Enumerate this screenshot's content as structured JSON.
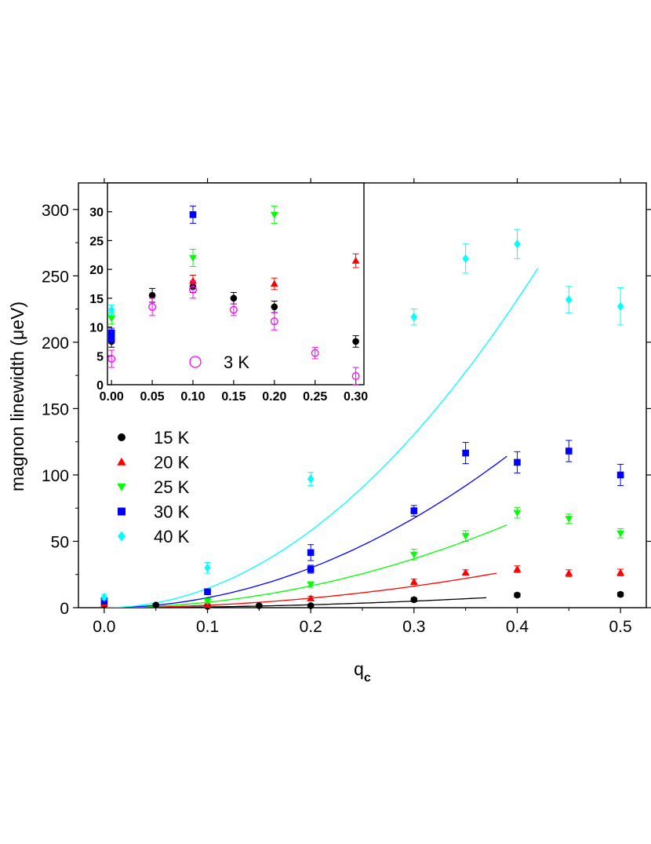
{
  "chart_data": [
    {
      "type": "scatter",
      "xlabel": "q",
      "xlabel_subscript": "c",
      "ylabel": "magnon linewidth (μeV)",
      "xlim": [
        -0.025,
        0.525
      ],
      "ylim": [
        0,
        320
      ],
      "xticks": [
        0.0,
        0.1,
        0.2,
        0.3,
        0.4,
        0.5
      ],
      "xtick_labels": [
        "0.0",
        "0.1",
        "0.2",
        "0.3",
        "0.4",
        "0.5"
      ],
      "yticks": [
        0,
        50,
        100,
        150,
        200,
        250,
        300
      ],
      "ytick_labels": [
        "0",
        "50",
        "100",
        "150",
        "200",
        "250",
        "300"
      ],
      "legend_position": "left",
      "series": [
        {
          "name": "15 K",
          "color": "#000000",
          "marker": "circle",
          "x": [
            0.0,
            0.05,
            0.1,
            0.15,
            0.2,
            0.3,
            0.4,
            0.5
          ],
          "y": [
            2,
            2,
            1,
            1.5,
            1.5,
            6,
            9.5,
            10
          ],
          "err": [
            1,
            1,
            1,
            1,
            1,
            1.5,
            1.5,
            1.5
          ],
          "fit": {
            "coef": 55,
            "exponent": 2,
            "x_range": [
              0.0,
              0.37
            ]
          }
        },
        {
          "name": "20 K",
          "color": "#ff0000",
          "marker": "triangle-up",
          "x": [
            0.0,
            0.1,
            0.2,
            0.3,
            0.35,
            0.4,
            0.45,
            0.5
          ],
          "y": [
            3,
            2,
            7,
            19.5,
            26.5,
            29,
            26,
            26.5
          ],
          "err": [
            1,
            1,
            1.5,
            2,
            2,
            2.5,
            2.5,
            2.5
          ],
          "fit": {
            "coef": 180,
            "exponent": 2,
            "x_range": [
              0.0,
              0.38
            ]
          }
        },
        {
          "name": "25 K",
          "color": "#00ff00",
          "marker": "triangle-down",
          "x": [
            0.0,
            0.1,
            0.2,
            0.3,
            0.35,
            0.4,
            0.45,
            0.5
          ],
          "y": [
            5,
            5,
            17.5,
            40,
            54,
            71.5,
            67,
            56
          ],
          "err": [
            1,
            1,
            2,
            4,
            4,
            4,
            3.5,
            3.5
          ],
          "fit": {
            "coef": 410,
            "exponent": 2,
            "x_range": [
              0.0,
              0.39
            ]
          }
        },
        {
          "name": "30 K",
          "color": "#0000ff",
          "marker": "square",
          "x": [
            0.0,
            0.1,
            0.2,
            0.2,
            0.3,
            0.35,
            0.4,
            0.45,
            0.5
          ],
          "y": [
            5,
            12,
            29,
            41.5,
            73,
            116.5,
            109.5,
            118,
            100
          ],
          "err": [
            1,
            2,
            3,
            6,
            4,
            8,
            8,
            8,
            8
          ],
          "fit": {
            "coef": 750,
            "exponent": 2,
            "x_range": [
              0.0,
              0.39
            ]
          }
        },
        {
          "name": "40 K",
          "color": "#00ffff",
          "marker": "diamond",
          "x": [
            0.0,
            0.1,
            0.2,
            0.3,
            0.35,
            0.4,
            0.45,
            0.5
          ],
          "y": [
            8,
            30,
            97,
            219,
            263,
            274,
            232,
            227
          ],
          "err": [
            2,
            4,
            5,
            6,
            11,
            11,
            10,
            14
          ],
          "fit": {
            "coef": 1450,
            "exponent": 2,
            "x_range": [
              0.0,
              0.42
            ]
          }
        }
      ]
    },
    {
      "type": "scatter",
      "xlim": [
        -0.005,
        0.31
      ],
      "ylim": [
        0,
        35
      ],
      "xticks": [
        0.0,
        0.05,
        0.1,
        0.15,
        0.2,
        0.25,
        0.3
      ],
      "xtick_labels": [
        "0.00",
        "0.05",
        "0.10",
        "0.15",
        "0.20",
        "0.25",
        "0.30"
      ],
      "yticks": [
        0,
        5,
        10,
        15,
        20,
        25,
        30
      ],
      "ytick_labels": [
        "0",
        "5",
        "10",
        "15",
        "20",
        "25",
        "30"
      ],
      "legend_position": "bottom-center",
      "series": [
        {
          "name": "15 K",
          "color": "#000000",
          "marker": "circle",
          "x": [
            0.0,
            0.05,
            0.1,
            0.15,
            0.2,
            0.3
          ],
          "y": [
            7.5,
            15.5,
            17,
            15,
            13.5,
            7.5
          ],
          "err": [
            1,
            1.2,
            1,
            1,
            1,
            1
          ]
        },
        {
          "name": "20 K",
          "color": "#ff0000",
          "marker": "triangle-up",
          "x": [
            0.1,
            0.2,
            0.3
          ],
          "y": [
            18,
            17.5,
            21.5
          ],
          "err": [
            1,
            1,
            1.2
          ]
        },
        {
          "name": "25 K",
          "color": "#00ff00",
          "marker": "triangle-down",
          "x": [
            0.0,
            0.1,
            0.2
          ],
          "y": [
            11.5,
            22,
            29.5
          ],
          "err": [
            1,
            1.5,
            1.5
          ]
        },
        {
          "name": "30 K",
          "color": "#0000ff",
          "marker": "square",
          "x": [
            0.0,
            0.0,
            0.1
          ],
          "y": [
            8,
            9,
            29.5
          ],
          "err": [
            0.8,
            0.8,
            1.5
          ]
        },
        {
          "name": "40 K",
          "color": "#00ffff",
          "marker": "diamond",
          "x": [
            0.0
          ],
          "y": [
            13
          ],
          "err": [
            0.8
          ]
        },
        {
          "name": "3 K",
          "color": "#ff00ff",
          "marker": "circle-open",
          "x": [
            0.0,
            0.05,
            0.1,
            0.15,
            0.2,
            0.25,
            0.3
          ],
          "y": [
            4.5,
            13.5,
            16.5,
            13,
            11,
            5.5,
            1.5
          ],
          "err": [
            1.5,
            1.5,
            1.5,
            1,
            1.5,
            1,
            1.5
          ]
        }
      ],
      "legend_entries": [
        "3 K"
      ]
    }
  ]
}
